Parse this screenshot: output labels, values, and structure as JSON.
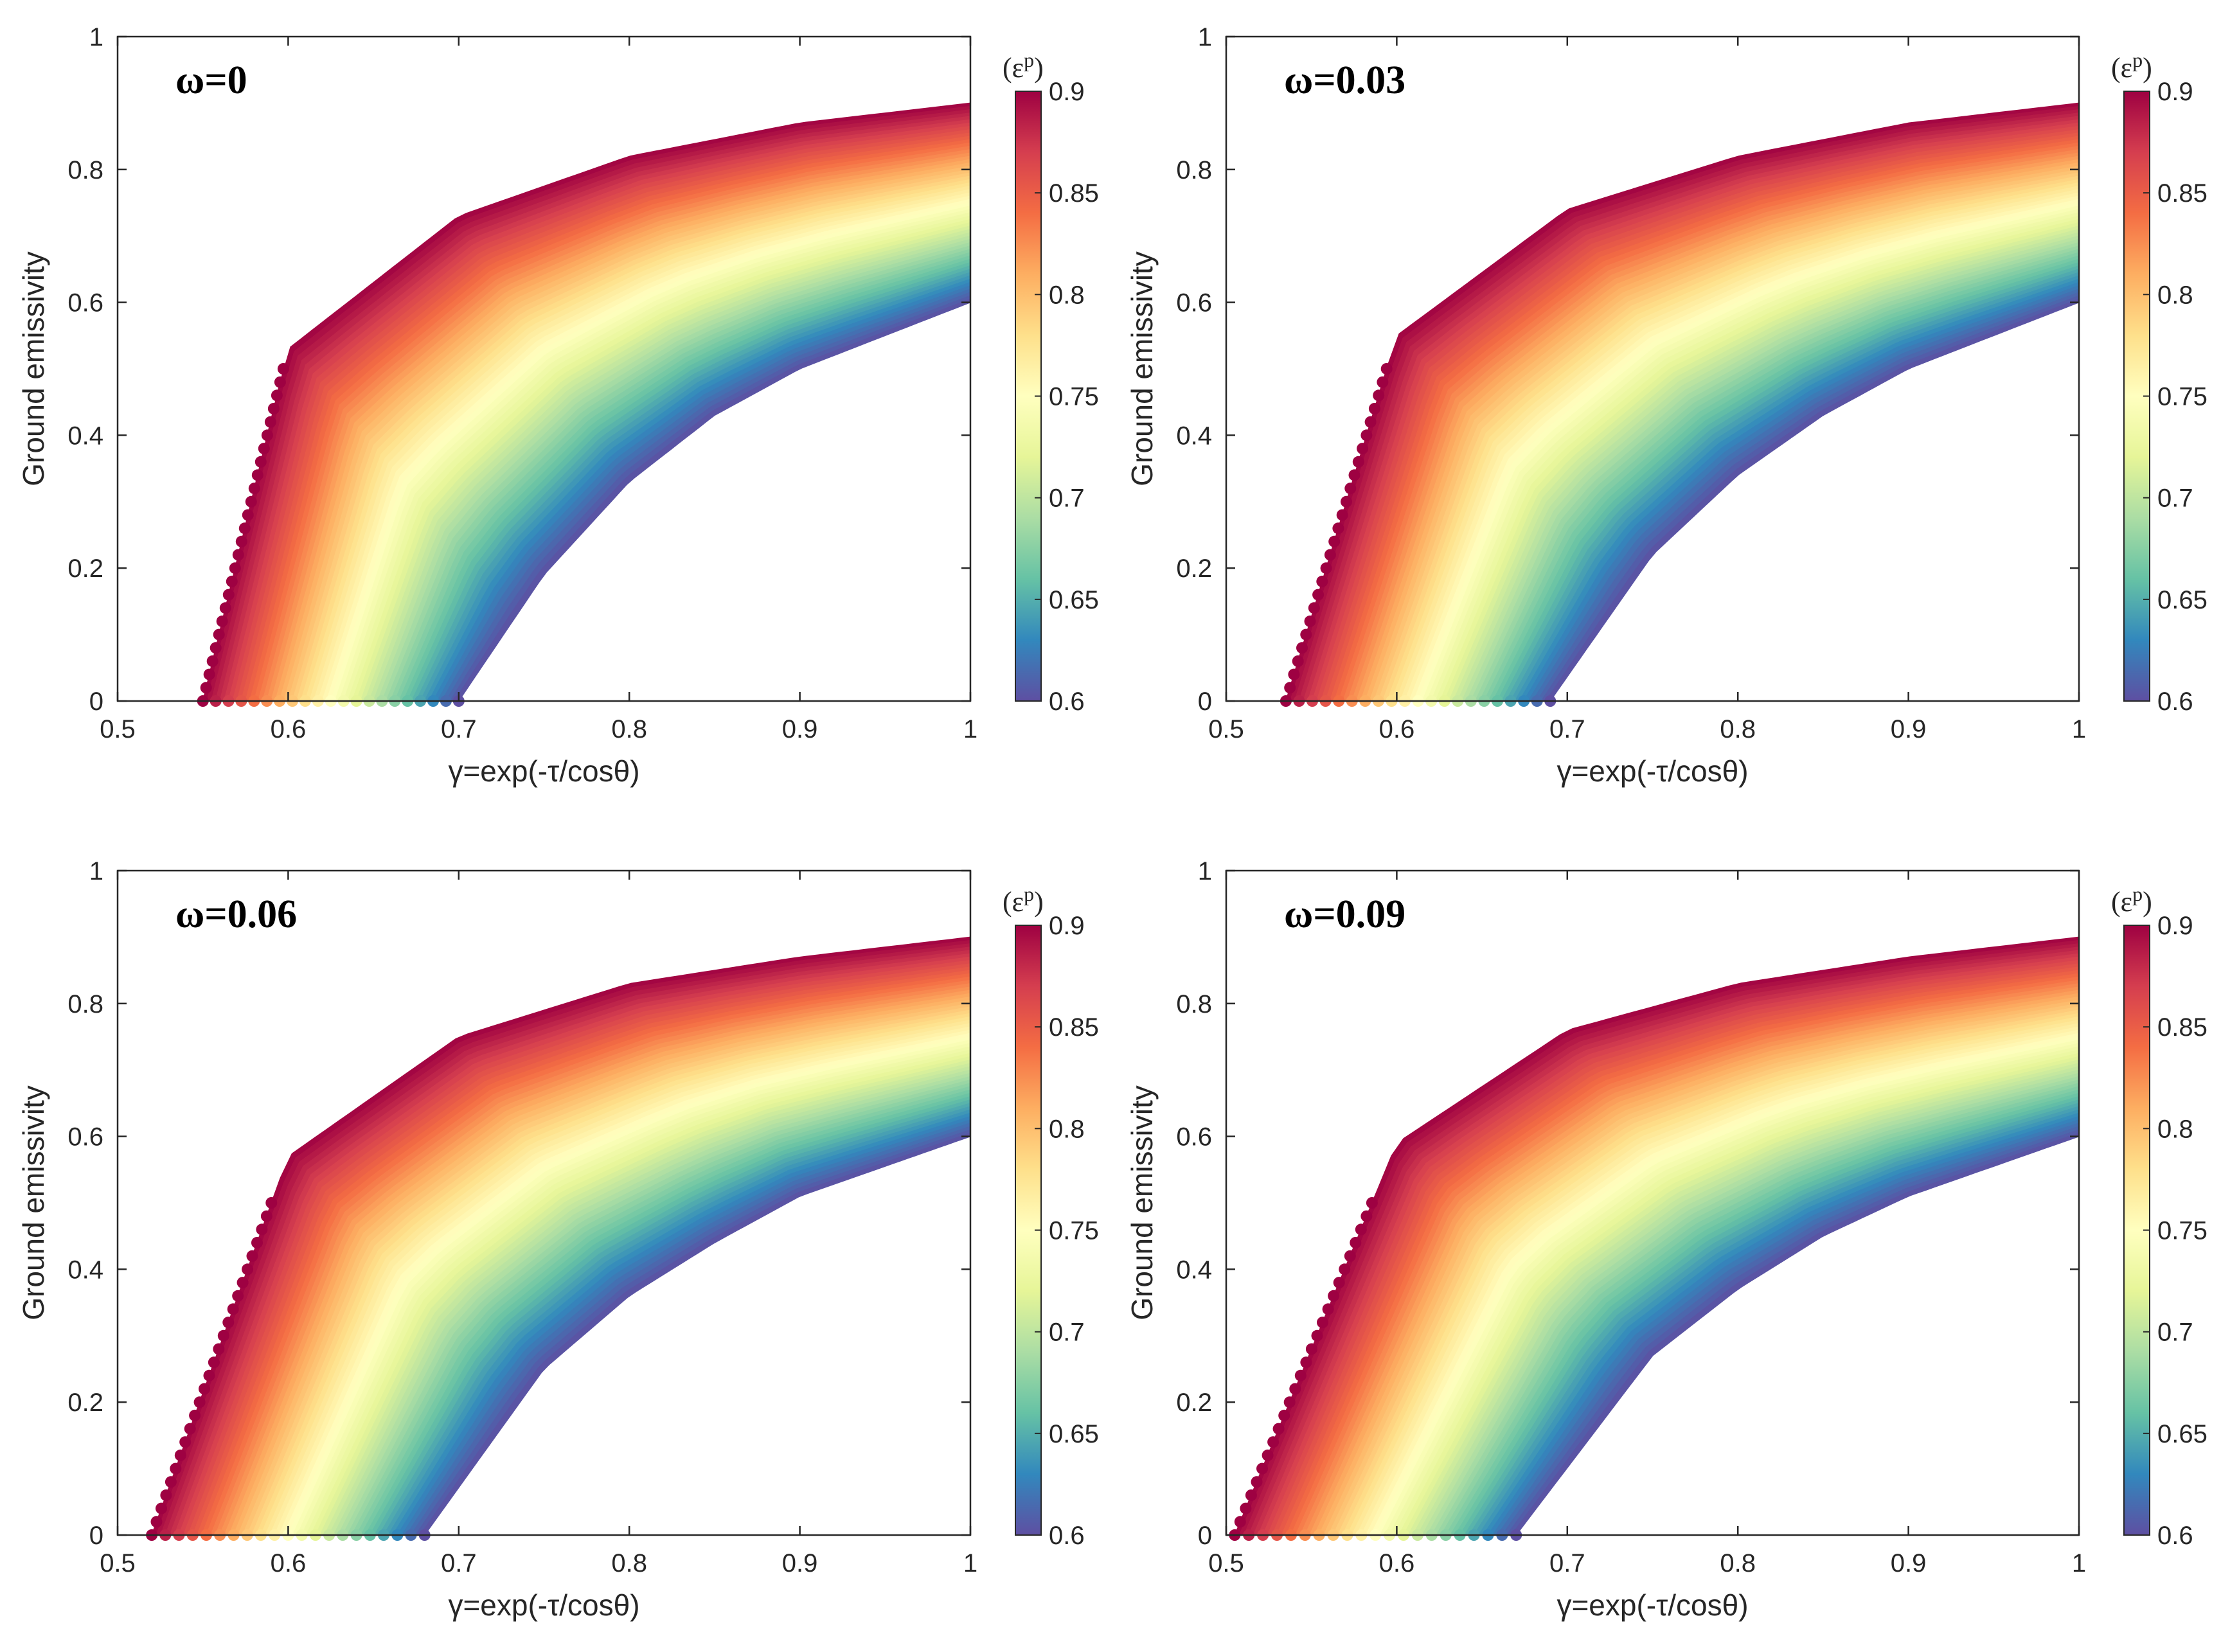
{
  "figure": {
    "x_range": [
      0.5,
      1
    ],
    "y_range": [
      0,
      1
    ],
    "colormap": [
      "#5e4fa2",
      "#3288bd",
      "#66c2a5",
      "#abdda4",
      "#e6f598",
      "#ffffbf",
      "#fee08b",
      "#fdae61",
      "#f46d43",
      "#d53e4f",
      "#9e0142"
    ]
  },
  "chart_data": [
    {
      "type": "scatter",
      "title": "ω=0",
      "xlabel": "γ=exp(-τ/cosθ)",
      "ylabel": "Ground emissivity",
      "xlim": [
        0.5,
        1
      ],
      "ylim": [
        0,
        1
      ],
      "x_ticks": [
        "0.5",
        "0.6",
        "0.7",
        "0.8",
        "0.9",
        "1"
      ],
      "y_ticks": [
        "0",
        "0.2",
        "0.4",
        "0.6",
        "0.8",
        "1"
      ],
      "colorbar": {
        "label": "(ε",
        "label_sup": "p",
        "label_close": ")",
        "range": [
          0.6,
          0.9
        ],
        "ticks": [
          "0.6",
          "0.65",
          "0.7",
          "0.75",
          "0.8",
          "0.85",
          "0.9"
        ]
      },
      "omega": 0,
      "series": [
        {
          "color_value": 0.9,
          "x": [
            0.55,
            0.6,
            0.7,
            0.8,
            0.9,
            1.0
          ],
          "y": [
            0.0,
            0.53,
            0.73,
            0.82,
            0.87,
            0.9
          ]
        },
        {
          "color_value": 0.6,
          "x": [
            0.7,
            0.75,
            0.8,
            0.85,
            0.9,
            1.0
          ],
          "y": [
            0.0,
            0.19,
            0.33,
            0.43,
            0.5,
            0.6
          ]
        }
      ]
    },
    {
      "type": "scatter",
      "title": "ω=0.03",
      "xlabel": "γ=exp(-τ/cosθ)",
      "ylabel": "Ground emissivity",
      "xlim": [
        0.5,
        1
      ],
      "ylim": [
        0,
        1
      ],
      "x_ticks": [
        "0.5",
        "0.6",
        "0.7",
        "0.8",
        "0.9",
        "1"
      ],
      "y_ticks": [
        "0",
        "0.2",
        "0.4",
        "0.6",
        "0.8",
        "1"
      ],
      "colorbar": {
        "label": "(ε",
        "label_sup": "p",
        "label_close": ")",
        "range": [
          0.6,
          0.9
        ],
        "ticks": [
          "0.6",
          "0.65",
          "0.7",
          "0.75",
          "0.8",
          "0.85",
          "0.9"
        ]
      },
      "omega": 0.03,
      "series": [
        {
          "color_value": 0.9,
          "x": [
            0.535,
            0.6,
            0.7,
            0.8,
            0.9,
            1.0
          ],
          "y": [
            0.0,
            0.55,
            0.74,
            0.82,
            0.87,
            0.9
          ]
        },
        {
          "color_value": 0.6,
          "x": [
            0.69,
            0.75,
            0.8,
            0.85,
            0.9,
            1.0
          ],
          "y": [
            0.0,
            0.22,
            0.34,
            0.43,
            0.5,
            0.6
          ]
        }
      ]
    },
    {
      "type": "scatter",
      "title": "ω=0.06",
      "xlabel": "γ=exp(-τ/cosθ)",
      "ylabel": "Ground emissivity",
      "xlim": [
        0.5,
        1
      ],
      "ylim": [
        0,
        1
      ],
      "x_ticks": [
        "0.5",
        "0.6",
        "0.7",
        "0.8",
        "0.9",
        "1"
      ],
      "y_ticks": [
        "0",
        "0.2",
        "0.4",
        "0.6",
        "0.8",
        "1"
      ],
      "colorbar": {
        "label": "(ε",
        "label_sup": "p",
        "label_close": ")",
        "range": [
          0.6,
          0.9
        ],
        "ticks": [
          "0.6",
          "0.65",
          "0.7",
          "0.75",
          "0.8",
          "0.85",
          "0.9"
        ]
      },
      "omega": 0.06,
      "series": [
        {
          "color_value": 0.9,
          "x": [
            0.52,
            0.6,
            0.7,
            0.8,
            0.9,
            1.0
          ],
          "y": [
            0.0,
            0.57,
            0.75,
            0.83,
            0.87,
            0.9
          ]
        },
        {
          "color_value": 0.6,
          "x": [
            0.68,
            0.75,
            0.8,
            0.85,
            0.9,
            1.0
          ],
          "y": [
            0.0,
            0.25,
            0.36,
            0.44,
            0.51,
            0.6
          ]
        }
      ]
    },
    {
      "type": "scatter",
      "title": "ω=0.09",
      "xlabel": "γ=exp(-τ/cosθ)",
      "ylabel": "Ground emissivity",
      "xlim": [
        0.5,
        1
      ],
      "ylim": [
        0,
        1
      ],
      "x_ticks": [
        "0.5",
        "0.6",
        "0.7",
        "0.8",
        "0.9",
        "1"
      ],
      "y_ticks": [
        "0",
        "0.2",
        "0.4",
        "0.6",
        "0.8",
        "1"
      ],
      "colorbar": {
        "label": "(ε",
        "label_sup": "p",
        "label_close": ")",
        "range": [
          0.6,
          0.9
        ],
        "ticks": [
          "0.6",
          "0.65",
          "0.7",
          "0.75",
          "0.8",
          "0.85",
          "0.9"
        ]
      },
      "omega": 0.09,
      "series": [
        {
          "color_value": 0.9,
          "x": [
            0.505,
            0.6,
            0.7,
            0.8,
            0.9,
            1.0
          ],
          "y": [
            0.0,
            0.59,
            0.76,
            0.83,
            0.87,
            0.9
          ]
        },
        {
          "color_value": 0.6,
          "x": [
            0.67,
            0.75,
            0.8,
            0.85,
            0.9,
            1.0
          ],
          "y": [
            0.0,
            0.27,
            0.37,
            0.45,
            0.51,
            0.6
          ]
        }
      ]
    }
  ]
}
